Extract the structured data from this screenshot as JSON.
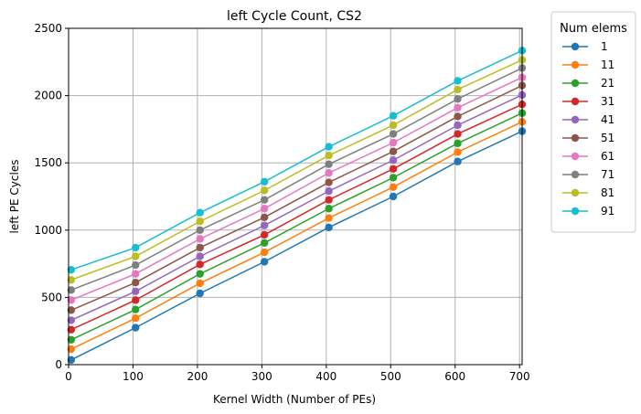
{
  "chart_data": {
    "type": "line",
    "title": "left Cycle Count, CS2",
    "xlabel": "Kernel Width (Number of PEs)",
    "ylabel": "left PE Cycles",
    "xlim": [
      0,
      704
    ],
    "ylim": [
      0,
      2500
    ],
    "xticks": [
      0,
      100,
      200,
      300,
      400,
      500,
      600,
      700
    ],
    "yticks": [
      0,
      500,
      1000,
      1500,
      2000,
      2500
    ],
    "grid": true,
    "x": [
      4,
      104,
      204,
      304,
      404,
      504,
      604,
      704
    ],
    "legend": {
      "title": "Num elems",
      "placement": "outside-right"
    },
    "series": [
      {
        "name": "1",
        "color": "#1f77b4",
        "values": [
          35,
          275,
          530,
          765,
          1020,
          1250,
          1510,
          1735
        ]
      },
      {
        "name": "11",
        "color": "#ff7f0e",
        "values": [
          115,
          345,
          605,
          835,
          1090,
          1320,
          1580,
          1805
        ]
      },
      {
        "name": "21",
        "color": "#2ca02c",
        "values": [
          185,
          410,
          675,
          905,
          1160,
          1390,
          1645,
          1870
        ]
      },
      {
        "name": "31",
        "color": "#d62728",
        "values": [
          260,
          480,
          745,
          965,
          1225,
          1455,
          1715,
          1935
        ]
      },
      {
        "name": "41",
        "color": "#9467bd",
        "values": [
          330,
          545,
          805,
          1035,
          1290,
          1520,
          1780,
          2005
        ]
      },
      {
        "name": "51",
        "color": "#8c564b",
        "values": [
          405,
          610,
          870,
          1095,
          1355,
          1585,
          1845,
          2075
        ]
      },
      {
        "name": "61",
        "color": "#e377c2",
        "values": [
          480,
          675,
          935,
          1160,
          1425,
          1650,
          1910,
          2135
        ]
      },
      {
        "name": "71",
        "color": "#7f7f7f",
        "values": [
          555,
          740,
          1000,
          1225,
          1490,
          1715,
          1975,
          2205
        ]
      },
      {
        "name": "81",
        "color": "#bcbd22",
        "values": [
          630,
          805,
          1065,
          1295,
          1555,
          1780,
          2045,
          2265
        ]
      },
      {
        "name": "91",
        "color": "#17becf",
        "values": [
          705,
          870,
          1130,
          1360,
          1620,
          1850,
          2110,
          2335
        ]
      }
    ]
  }
}
